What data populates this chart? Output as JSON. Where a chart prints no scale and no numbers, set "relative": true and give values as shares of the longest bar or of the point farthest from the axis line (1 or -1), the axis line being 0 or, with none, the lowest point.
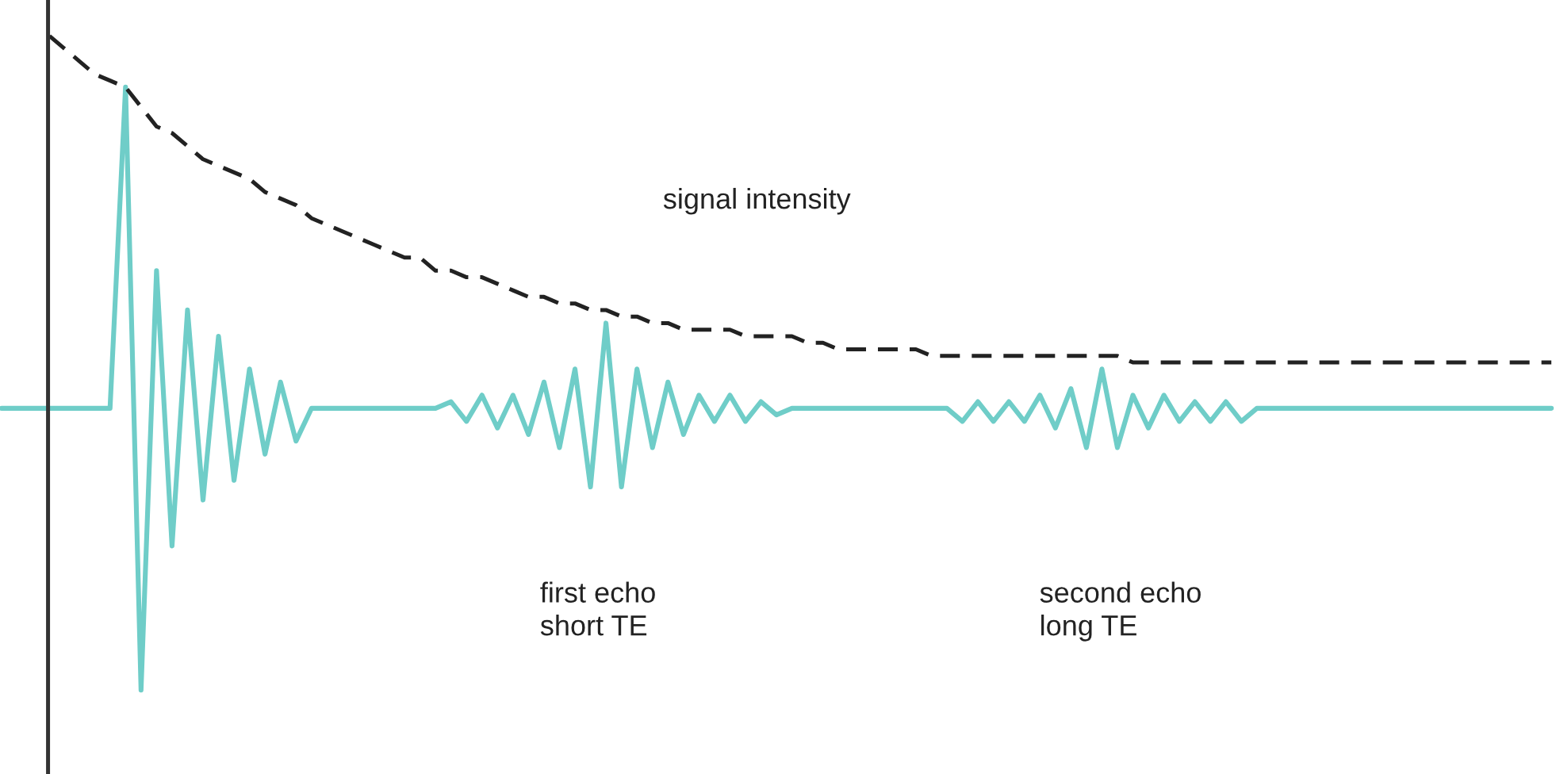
{
  "chart_data": {
    "type": "line",
    "relative": true,
    "marker": "none",
    "categories": [
      null,
      null,
      null,
      null,
      null,
      null,
      null,
      null,
      null,
      null,
      null,
      null,
      null,
      null,
      null,
      null,
      null,
      null,
      null,
      null,
      null,
      null,
      null,
      null,
      null,
      null,
      null,
      null,
      null,
      null,
      null,
      null,
      null,
      null,
      null,
      null,
      null,
      null,
      null,
      null,
      null,
      null,
      null,
      null,
      null,
      null,
      null,
      null,
      null,
      null,
      null,
      null,
      null,
      null,
      null,
      null,
      null,
      null,
      null,
      null,
      null,
      null,
      null,
      null,
      null,
      null,
      null,
      null,
      null,
      null,
      null,
      null,
      null,
      null,
      null,
      null,
      null,
      null,
      null,
      null,
      null,
      null,
      null,
      null,
      null,
      null,
      null,
      null,
      null,
      null,
      null,
      null,
      null,
      null,
      null,
      null,
      null,
      null,
      null,
      null,
      null
    ],
    "series": [
      {
        "color": "#6fcdc8",
        "line_style": "solid",
        "values": [
          0.43,
          0.43,
          0.43,
          0.43,
          0.43,
          0.43,
          0.43,
          0.43,
          0.92,
          0,
          0.64,
          0.22,
          0.58,
          0.29,
          0.54,
          0.32,
          0.49,
          0.36,
          0.47,
          0.38,
          0.43,
          0.43,
          0.43,
          0.43,
          0.43,
          0.43,
          0.43,
          0.43,
          0.43,
          0.44,
          0.41,
          0.45,
          0.4,
          0.45,
          0.39,
          0.47,
          0.37,
          0.49,
          0.31,
          0.56,
          0.31,
          0.49,
          0.37,
          0.47,
          0.39,
          0.45,
          0.41,
          0.45,
          0.41,
          0.44,
          0.42,
          0.43,
          0.43,
          0.43,
          0.43,
          0.43,
          0.43,
          0.43,
          0.43,
          0.43,
          0.43,
          0.43,
          0.41,
          0.44,
          0.41,
          0.44,
          0.41,
          0.45,
          0.4,
          0.46,
          0.37,
          0.49,
          0.37,
          0.45,
          0.4,
          0.45,
          0.41,
          0.44,
          0.41,
          0.44,
          0.41,
          0.43,
          0.43,
          0.43,
          0.43,
          0.43,
          0.43,
          0.43,
          0.43,
          0.43,
          0.43,
          0.43,
          0.43,
          0.43,
          0.43,
          0.43,
          0.43,
          0.43,
          0.43,
          0.43,
          0.43
        ]
      },
      {
        "color": "#222222",
        "line_style": "dashed",
        "values": [
          null,
          null,
          null,
          1.0,
          0.98,
          0.96,
          0.94,
          0.93,
          0.92,
          0.89,
          0.86,
          0.85,
          0.83,
          0.81,
          0.8,
          0.79,
          0.78,
          0.76,
          0.75,
          0.74,
          0.72,
          0.71,
          0.7,
          0.69,
          0.68,
          0.67,
          0.66,
          0.66,
          0.64,
          0.64,
          0.63,
          0.63,
          0.62,
          0.61,
          0.6,
          0.6,
          0.59,
          0.59,
          0.58,
          0.58,
          0.57,
          0.57,
          0.56,
          0.56,
          0.55,
          0.55,
          0.55,
          0.55,
          0.54,
          0.54,
          0.54,
          0.54,
          0.53,
          0.53,
          0.52,
          0.52,
          0.52,
          0.52,
          0.52,
          0.52,
          0.51,
          0.51,
          0.51,
          0.51,
          0.51,
          0.51,
          0.51,
          0.51,
          0.51,
          0.51,
          0.51,
          0.51,
          0.51,
          0.5,
          0.5,
          0.5,
          0.5,
          0.5,
          0.5,
          0.5,
          0.5,
          0.5,
          0.5,
          0.5,
          0.5,
          0.5,
          0.5,
          0.5,
          0.5,
          0.5,
          0.5,
          0.5,
          0.5,
          0.5,
          0.5,
          0.5,
          0.5,
          0.5,
          0.5,
          0.5,
          0.5
        ]
      }
    ],
    "annotations": [
      "signal intensity",
      "first echo\nshort TE",
      "second echo\nlong TE"
    ]
  }
}
